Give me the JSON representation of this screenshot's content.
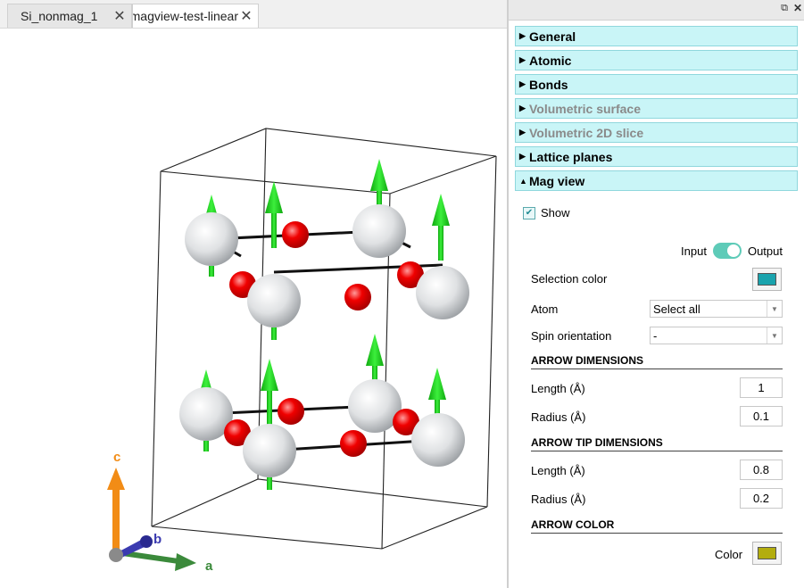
{
  "tabs": [
    {
      "label": "Si_nonmag_1",
      "active": false
    },
    {
      "label": "magview-test-linear",
      "active": true
    }
  ],
  "viewport": {
    "axes": {
      "a": "a",
      "b": "b",
      "c": "c"
    },
    "colors": {
      "atom_large": "#d8dadc",
      "atom_small": "#e8000b",
      "arrow": "#1fd11f",
      "axis_a": "#3b8a3b",
      "axis_b": "#3b3bb0",
      "axis_c": "#f28c16"
    }
  },
  "panel": {
    "sections": [
      {
        "label": "General",
        "disabled": false,
        "expanded": false
      },
      {
        "label": "Atomic",
        "disabled": false,
        "expanded": false
      },
      {
        "label": "Bonds",
        "disabled": false,
        "expanded": false
      },
      {
        "label": "Volumetric surface",
        "disabled": true,
        "expanded": false
      },
      {
        "label": "Volumetric 2D slice",
        "disabled": true,
        "expanded": false
      },
      {
        "label": "Lattice planes",
        "disabled": false,
        "expanded": false
      },
      {
        "label": "Mag view",
        "disabled": false,
        "expanded": true
      }
    ],
    "mag_view": {
      "show_label": "Show",
      "show_checked": true,
      "input_label": "Input",
      "output_label": "Output",
      "selection_color_label": "Selection color",
      "selection_color": "#1aa3ad",
      "atom_label": "Atom",
      "atom_value": "Select all",
      "spin_label": "Spin orientation",
      "spin_value": "-",
      "arrow_dims_heading": "ARROW DIMENSIONS",
      "arrow_length_label": "Length (Å)",
      "arrow_length": "1",
      "arrow_radius_label": "Radius (Å)",
      "arrow_radius": "0.1",
      "tip_heading": "ARROW TIP DIMENSIONS",
      "tip_length_label": "Length (Å)",
      "tip_length": "0.8",
      "tip_radius_label": "Radius (Å)",
      "tip_radius": "0.2",
      "color_heading": "ARROW COLOR",
      "color_label": "Color",
      "arrow_color": "#b3ad0e"
    }
  }
}
